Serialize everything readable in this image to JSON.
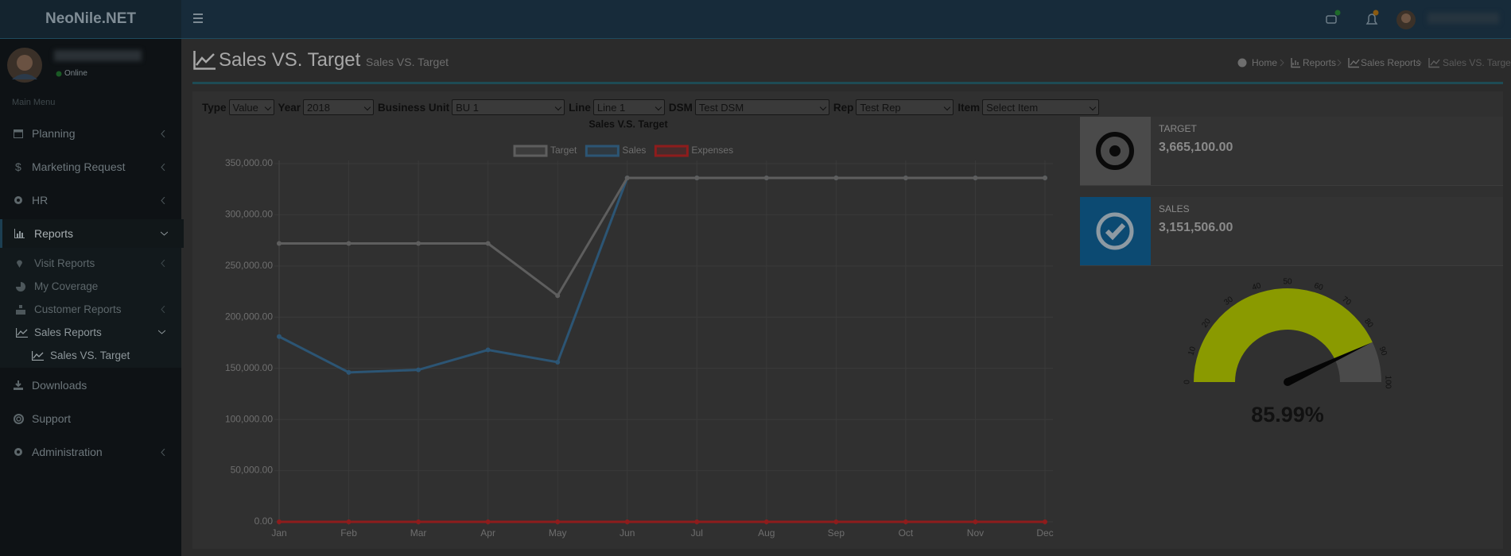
{
  "header": {
    "brand": "NeoNile.NET"
  },
  "user": {
    "status": "Online"
  },
  "sidebar": {
    "section": "Main Menu",
    "items": [
      "Planning",
      "Marketing Request",
      "HR",
      "Reports",
      "Downloads",
      "Support",
      "Administration"
    ],
    "report_items": [
      "Visit Reports",
      "My Coverage",
      "Customer Reports",
      "Sales Reports"
    ],
    "sales_report_items": [
      "Sales VS. Target"
    ]
  },
  "page": {
    "title": "Sales VS. Target",
    "subtitle": "Sales VS. Target",
    "breadcrumb": [
      "Home",
      "Reports",
      "Sales Reports",
      "Sales VS. Target"
    ]
  },
  "filters": [
    {
      "label": "Type",
      "value": "Value"
    },
    {
      "label": "Year",
      "value": "2018"
    },
    {
      "label": "Business Unit",
      "value": "BU 1"
    },
    {
      "label": "Line",
      "value": "Line 1"
    },
    {
      "label": "DSM",
      "value": "Test DSM"
    },
    {
      "label": "Rep",
      "value": "Test Rep"
    },
    {
      "label": "Item",
      "value": "Select Item"
    }
  ],
  "kpis": [
    {
      "label": "TARGET",
      "value": "3,665,100.00"
    },
    {
      "label": "SALES",
      "value": "3,151,506.00"
    }
  ],
  "chart_data": [
    {
      "type": "line",
      "title": "Sales V.S. Target",
      "categories": [
        "Jan",
        "Feb",
        "Mar",
        "Apr",
        "May",
        "Jun",
        "Jul",
        "Aug",
        "Sep",
        "Oct",
        "Nov",
        "Dec"
      ],
      "series": [
        {
          "name": "Target",
          "color": "#5e5e5e",
          "values": [
            272000,
            272000,
            272000,
            272000,
            221000,
            336000,
            336000,
            336000,
            336000,
            336000,
            336000,
            336000
          ]
        },
        {
          "name": "Sales",
          "color": "#2c5574",
          "values": [
            181000,
            146000,
            148500,
            168000,
            156000,
            336000,
            336000,
            336000,
            336000,
            336000,
            336000,
            336000
          ]
        },
        {
          "name": "Expenses",
          "color": "#8e1c1c",
          "values": [
            0,
            0,
            0,
            0,
            0,
            0,
            0,
            0,
            0,
            0,
            0,
            0
          ]
        }
      ],
      "ylim": [
        0,
        350000
      ],
      "yticks": [
        {
          "value": 0,
          "label": "0.00"
        },
        {
          "value": 50000,
          "label": "50,000.00"
        },
        {
          "value": 100000,
          "label": "100,000.00"
        },
        {
          "value": 150000,
          "label": "150,000.00"
        },
        {
          "value": 200000,
          "label": "200,000.00"
        },
        {
          "value": 250000,
          "label": "250,000.00"
        },
        {
          "value": 300000,
          "label": "300,000.00"
        },
        {
          "value": 350000,
          "label": "350,000.00"
        }
      ],
      "grid": true
    },
    {
      "type": "gauge",
      "value": 85.99,
      "value_label": "85.99%",
      "range": [
        0,
        100
      ],
      "ticks": [
        0,
        10,
        20,
        30,
        40,
        50,
        60,
        70,
        80,
        90,
        100
      ],
      "color": "#8a9a00",
      "track_color": "#4a4a4a"
    }
  ]
}
